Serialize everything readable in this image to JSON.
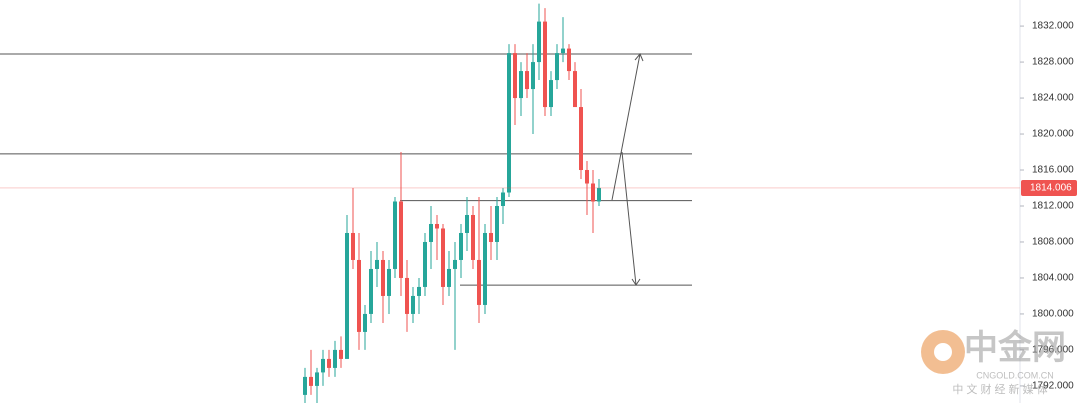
{
  "chart_data": {
    "type": "candlestick",
    "up_color": "#26a69a",
    "down_color": "#ef5350",
    "open": [
      1791,
      1793,
      1792,
      1793.5,
      1795,
      1794,
      1796,
      1795,
      1809,
      1806,
      1798,
      1800,
      1805,
      1806,
      1802,
      1805,
      1812.5,
      1804,
      1800,
      1802,
      1803,
      1808,
      1810,
      1809.5,
      1803,
      1805,
      1806,
      1809,
      1811,
      1806,
      1801,
      1809,
      1808,
      1812,
      1813.5,
      1829,
      1824,
      1827,
      1825,
      1828,
      1832.5,
      1823,
      1826,
      1829,
      1829.5,
      1827,
      1823,
      1816,
      1814.5,
      1812.5
    ],
    "high": [
      1794,
      1796,
      1794,
      1796,
      1796,
      1797,
      1797.5,
      1811,
      1814,
      1809,
      1801,
      1807,
      1808,
      1807,
      1806,
      1813,
      1818,
      1806,
      1803,
      1804,
      1809,
      1812,
      1811,
      1810,
      1807,
      1808,
      1810,
      1813,
      1812,
      1813,
      1810,
      1812,
      1813,
      1814,
      1830,
      1830,
      1828,
      1829,
      1830,
      1834.5,
      1834,
      1827,
      1830,
      1833,
      1830,
      1828,
      1825,
      1817,
      1816,
      1815
    ],
    "low": [
      1790,
      1791,
      1790,
      1792,
      1793,
      1793,
      1794,
      1795,
      1805,
      1796,
      1796,
      1799,
      1803,
      1799,
      1800,
      1804,
      1802,
      1798,
      1799,
      1800,
      1802,
      1805,
      1806,
      1801,
      1802,
      1796,
      1804,
      1807,
      1805,
      1799,
      1800,
      1806,
      1806,
      1810,
      1813,
      1821,
      1822,
      1824,
      1820,
      1826,
      1822,
      1822,
      1825,
      1828,
      1826,
      1823,
      1815,
      1811,
      1809,
      1812
    ],
    "close": [
      1793,
      1792,
      1793.5,
      1795,
      1794,
      1796,
      1795,
      1809,
      1806,
      1798,
      1800,
      1805,
      1806,
      1802,
      1805,
      1812.5,
      1804,
      1800,
      1802,
      1803,
      1808,
      1810,
      1809.5,
      1803,
      1805,
      1806,
      1809,
      1811,
      1806,
      1801,
      1809,
      1808,
      1812,
      1813.5,
      1829,
      1824,
      1827,
      1825,
      1828,
      1832.5,
      1823,
      1826,
      1829,
      1829.5,
      1827,
      1823,
      1816,
      1814.5,
      1812.5,
      1814.006
    ],
    "ylim": [
      1790.1,
      1834.9
    ],
    "yticks": [
      {
        "value": 1832,
        "label": "1832.000"
      },
      {
        "value": 1828,
        "label": "1828.000"
      },
      {
        "value": 1824,
        "label": "1824.000"
      },
      {
        "value": 1820,
        "label": "1820.000"
      },
      {
        "value": 1816,
        "label": "1816.000"
      },
      {
        "value": 1812,
        "label": "1812.000"
      },
      {
        "value": 1808,
        "label": "1808.000"
      },
      {
        "value": 1804,
        "label": "1804.000"
      },
      {
        "value": 1800,
        "label": "1800.000"
      },
      {
        "value": 1796,
        "label": "1796.000"
      },
      {
        "value": 1792,
        "label": "1792.000"
      }
    ],
    "levels": [
      1828.9,
      1817.8,
      1812.6,
      1803.2
    ],
    "last_price": 1814.006,
    "last_price_color": "#ef5350"
  },
  "watermark": {
    "logo": "中金网",
    "site": "CNGOLD.COM.CN",
    "slogan": "中 文 财 经 新 媒 体"
  }
}
